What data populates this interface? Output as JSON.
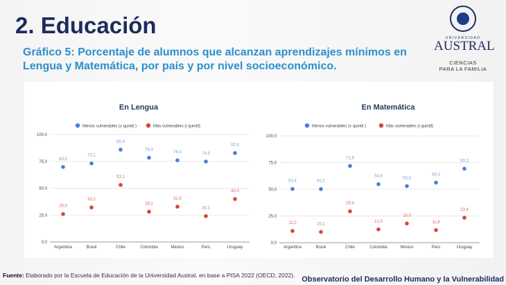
{
  "slide": {
    "title": "2. Educación",
    "subtitle": "Gráfico 5: Porcentaje de alumnos que alcanzan aprendizajes mínimos en Lengua y Matemática, por país y por nivel socioeconómico.",
    "logo": {
      "university": "UNIVERSIDAD",
      "name": "AUSTRAL",
      "faculty_line1": "CIENCIAS",
      "faculty_line2": "PARA LA FAMILIA"
    },
    "source_label": "Fuente:",
    "source_text": " Elaborado por la Escuela de Educación de la Universidad Austral, en base a PISA 2022 (OECD, 2022).",
    "observatory": "Observatorio del Desarrollo Humano y la Vulnerabilidad"
  },
  "chart_data": [
    {
      "type": "scatter",
      "title": "En Lengua",
      "categories": [
        "Argentina",
        "Brasil",
        "Chile",
        "Colombia",
        "México",
        "Perú",
        "Uruguay"
      ],
      "ylim": [
        0,
        100
      ],
      "yticks": [
        "0,0",
        "25,0",
        "50,0",
        "75,0",
        "100,0"
      ],
      "grid": true,
      "legend": "top",
      "series": [
        {
          "name": "Menos vulnerables (v quintil )",
          "color": "#4a7fd6",
          "labelColor": "#7a9fd6",
          "values": [
            69.8,
            73.1,
            85.9,
            78.4,
            76.0,
            74.9,
            82.8
          ],
          "labels": [
            "69,8",
            "73,1",
            "85,9",
            "78,4",
            "76,0",
            "74,9",
            "82,8"
          ]
        },
        {
          "name": "Más vulnerables (i quintil)",
          "color": "#d9443a",
          "labelColor": "#d46a60",
          "values": [
            26.0,
            32.2,
            53.1,
            28.2,
            32.9,
            24.1,
            40.0
          ],
          "labels": [
            "26,0",
            "32,2",
            "53,1",
            "28,2",
            "32,9",
            "24,1",
            "40,0"
          ]
        }
      ]
    },
    {
      "type": "scatter",
      "title": "En Matemática",
      "categories": [
        "Argentina",
        "Brasil",
        "Chile",
        "Colombia",
        "México",
        "Perú",
        "Uruguay"
      ],
      "ylim": [
        0,
        100
      ],
      "yticks": [
        "0,0",
        "25,0",
        "50,0",
        "75,0",
        "100,0"
      ],
      "grid": true,
      "legend": "top",
      "series": [
        {
          "name": "Menos vulnerables (v quintil )",
          "color": "#4a7fd6",
          "labelColor": "#7a9fd6",
          "values": [
            50.4,
            50.2,
            71.9,
            54.8,
            53.0,
            56.3,
            69.3
          ],
          "labels": [
            "50,4",
            "50,2",
            "71,9",
            "54,8",
            "53,0",
            "56,3",
            "69,3"
          ]
        },
        {
          "name": "Más vulnerables (i quintil)",
          "color": "#d9443a",
          "labelColor": "#d46a60",
          "values": [
            11.0,
            10.1,
            29.4,
            12.5,
            18.0,
            11.8,
            23.4
          ],
          "labels": [
            "11,0",
            "10,1",
            "29,4",
            "12,5",
            "18,0",
            "11,8",
            "23,4"
          ]
        }
      ]
    }
  ]
}
